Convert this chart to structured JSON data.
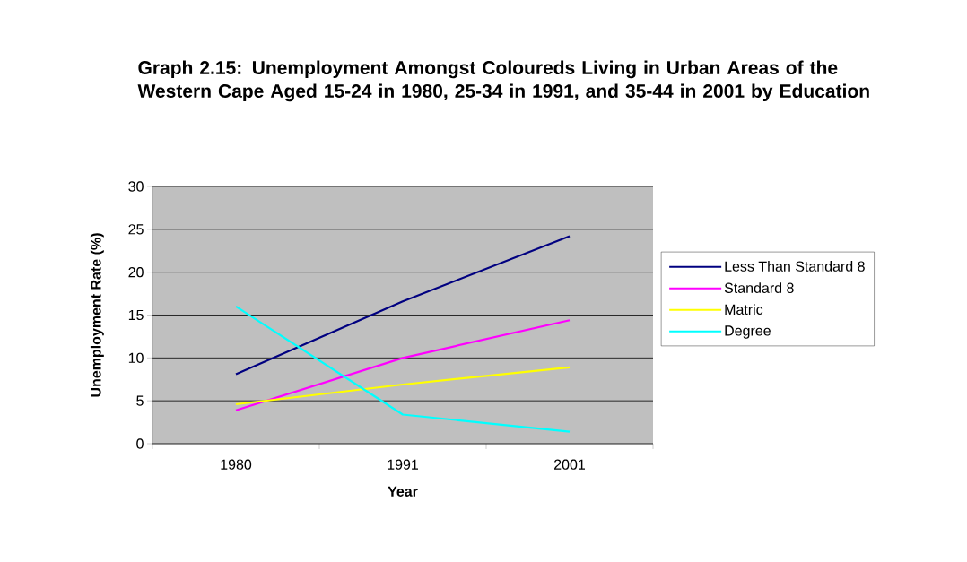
{
  "chart_data": {
    "type": "line",
    "title": "Graph 2.15: Unemployment Amongst Coloureds Living in Urban Areas of the Western Cape Aged 15-24 in 1980, 25-34 in 1991, and 35-44 in 2001 by Education",
    "xlabel": "Year",
    "ylabel": "Unemployment Rate (%)",
    "categories": [
      "1980",
      "1991",
      "2001"
    ],
    "series": [
      {
        "name": "Less Than Standard 8",
        "color": "#000080",
        "values": [
          8.1,
          16.6,
          24.2
        ]
      },
      {
        "name": "Standard 8",
        "color": "#ff00ff",
        "values": [
          3.9,
          10.0,
          14.4
        ]
      },
      {
        "name": "Matric",
        "color": "#ffff00",
        "values": [
          4.6,
          6.9,
          8.9
        ]
      },
      {
        "name": "Degree",
        "color": "#00ffff",
        "values": [
          16.0,
          3.4,
          1.4
        ]
      }
    ],
    "ylim": [
      0,
      30
    ],
    "yticks": [
      0,
      5,
      10,
      15,
      20,
      25,
      30
    ],
    "grid": "y",
    "legend": "right"
  }
}
